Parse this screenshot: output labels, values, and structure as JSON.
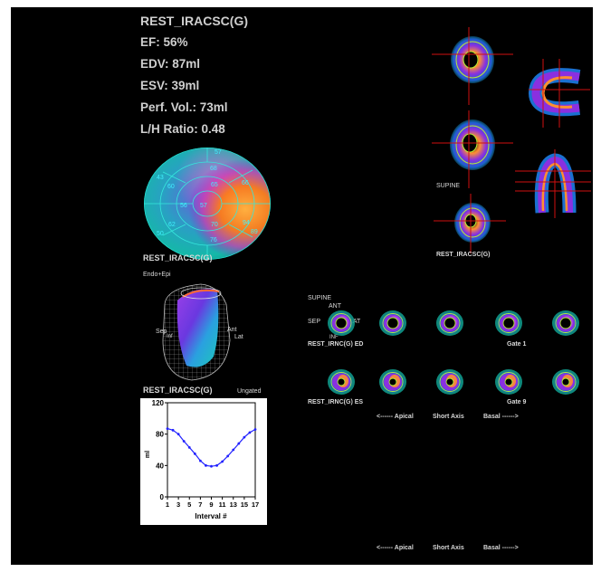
{
  "header": {
    "title": "REST_IRACSC(G)",
    "ef": "EF: 56%",
    "edv": "EDV: 87ml",
    "esv": "ESV: 39ml",
    "perf_vol": "Perf. Vol.: 73ml",
    "lh_ratio": "L/H Ratio: 0.48"
  },
  "polar_map": {
    "caption": "REST_IRACSC(G)",
    "segment_values": [
      "57",
      "68",
      "65",
      "57",
      "56",
      "43",
      "60",
      "62",
      "50",
      "70",
      "76",
      "94",
      "89",
      "66"
    ]
  },
  "surface_3d": {
    "mode_label": "Endo+Epi",
    "caption": "REST_IRACSC(G)",
    "state": "Ungated",
    "label_sep": "Sep",
    "label_ant": "Ant",
    "label_lat": "Lat",
    "label_inf": "Inf"
  },
  "volume_curve": {
    "x_label": "Interval #",
    "y_label": "ml",
    "chart_data": {
      "type": "line",
      "x": [
        1,
        2,
        3,
        4,
        5,
        6,
        7,
        8,
        9,
        10,
        11,
        12,
        13,
        14,
        15,
        16,
        17
      ],
      "values": [
        87,
        85,
        80,
        71,
        63,
        55,
        46,
        40,
        39,
        40,
        45,
        52,
        60,
        68,
        76,
        82,
        86
      ],
      "xlabel": "Interval #",
      "ylabel": "ml",
      "ylim": [
        0,
        120
      ],
      "xlim": [
        1,
        17
      ],
      "y_ticks": [
        "0",
        "40",
        "80",
        "120"
      ],
      "x_ticks": [
        "1",
        "3",
        "5",
        "7",
        "9",
        "11",
        "13",
        "15",
        "17"
      ],
      "grid": false,
      "line_color": "#2222ff"
    }
  },
  "orthogonal_views": {
    "supine_label": "SUPINE",
    "caption": "REST_IRACSC(G)"
  },
  "gated_strip": {
    "supine": "SUPINE",
    "ant": "ANT",
    "sep": "SEP",
    "lat": "LAT",
    "inf": "INF",
    "ed_label": "REST_IRNC(G) ED",
    "es_label": "REST_IRNC(G) ES",
    "gate_ed": "Gate 1",
    "gate_es": "Gate 9",
    "apical": "<------ Apical",
    "short_axis": "Short Axis",
    "basal": "Basal ------>"
  },
  "footer_axis": {
    "apical": "<------ Apical",
    "short_axis": "Short Axis",
    "basal": "Basal ------>"
  },
  "colors": {
    "background": "#000000",
    "polar_blue": "#16b8b0",
    "polar_orange": "#ff8a1e",
    "crosshair": "#d01010",
    "contour": "#b4f036"
  }
}
